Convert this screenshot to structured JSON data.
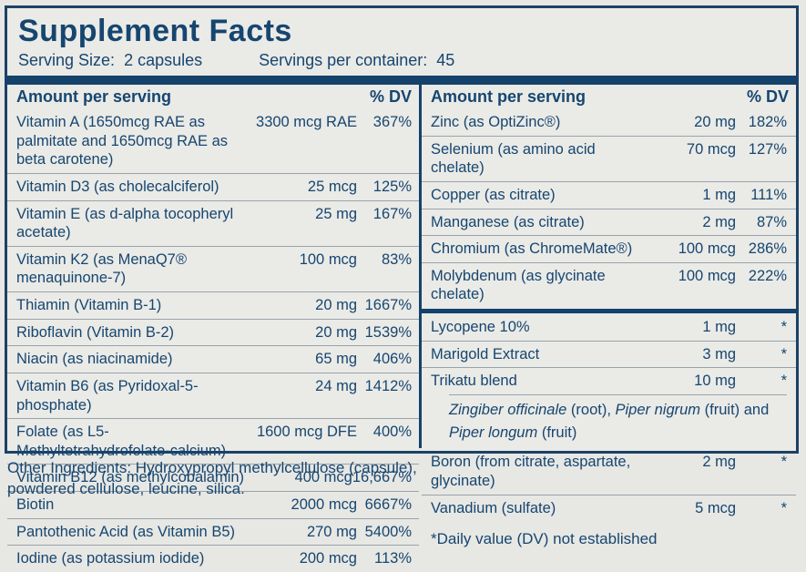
{
  "title": "Supplement Facts",
  "serving": {
    "size_label": "Serving Size:",
    "size_value": "2 capsules",
    "container_label": "Servings per container:",
    "container_value": "45"
  },
  "table_headers": {
    "amount": "Amount per serving",
    "dv": "% DV"
  },
  "left_rows": [
    {
      "name": "Vitamin A (1650mcg RAE as palmitate and 1650mcg RAE as beta carotene)",
      "amount": "3300 mcg RAE",
      "dv": "367%"
    },
    {
      "name": "Vitamin D3 (as cholecalciferol)",
      "amount": "25 mcg",
      "dv": "125%"
    },
    {
      "name": "Vitamin E (as d-alpha tocopheryl acetate)",
      "amount": "25 mg",
      "dv": "167%"
    },
    {
      "name": "Vitamin K2 (as MenaQ7® menaquinone-7)",
      "amount": "100 mcg",
      "dv": "83%"
    },
    {
      "name": "Thiamin (Vitamin B-1)",
      "amount": "20 mg",
      "dv": "1667%"
    },
    {
      "name": "Riboflavin (Vitamin B-2)",
      "amount": "20 mg",
      "dv": "1539%"
    },
    {
      "name": "Niacin (as niacinamide)",
      "amount": "65 mg",
      "dv": "406%"
    },
    {
      "name": "Vitamin B6 (as Pyridoxal-5-phosphate)",
      "amount": "24 mg",
      "dv": "1412%"
    },
    {
      "name": "Folate (as L5-Methyltetrahydrofolate-calcium)",
      "amount": "1600 mcg DFE",
      "dv": "400%"
    },
    {
      "name": "Vitamin B12 (as methylcobalamin)",
      "amount": "400 mcg",
      "dv": "16,667%"
    },
    {
      "name": "Biotin",
      "amount": "2000 mcg",
      "dv": "6667%"
    },
    {
      "name": "Pantothenic Acid (as Vitamin B5)",
      "amount": "270 mg",
      "dv": "5400%"
    },
    {
      "name": "Iodine (as potassium iodide)",
      "amount": "200 mcg",
      "dv": "113%"
    }
  ],
  "right_sections": [
    {
      "rows": [
        {
          "name": "Zinc (as OptiZinc®)",
          "amount": "20 mg",
          "dv": "182%"
        },
        {
          "name": "Selenium (as amino acid chelate)",
          "amount": "70 mcg",
          "dv": "127%"
        },
        {
          "name": "Copper (as citrate)",
          "amount": "1 mg",
          "dv": "111%"
        },
        {
          "name": "Manganese (as citrate)",
          "amount": "2 mg",
          "dv": "87%"
        },
        {
          "name": "Chromium (as ChromeMate®)",
          "amount": "100 mcg",
          "dv": "286%"
        },
        {
          "name": "Molybdenum (as glycinate chelate)",
          "amount": "100 mcg",
          "dv": "222%"
        }
      ]
    },
    {
      "rows": [
        {
          "name": "Lycopene 10%",
          "amount": "1 mg",
          "dv": "*"
        },
        {
          "name": "Marigold Extract",
          "amount": "3 mg",
          "dv": "*"
        },
        {
          "name": "Trikatu blend",
          "amount": "10 mg",
          "dv": "*",
          "sub_segments": [
            {
              "t": "Zingiber officinale",
              "i": true
            },
            {
              "t": " (root), ",
              "i": false
            },
            {
              "t": "Piper nigrum",
              "i": true
            },
            {
              "t": " (fruit) and ",
              "i": false
            },
            {
              "t": "Piper longum",
              "i": true
            },
            {
              "t": " (fruit)",
              "i": false
            }
          ]
        },
        {
          "name": "Boron (from citrate, aspartate, glycinate)",
          "amount": "2 mg",
          "dv": "*"
        },
        {
          "name": "Vanadium (sulfate)",
          "amount": "5 mcg",
          "dv": "*"
        }
      ]
    }
  ],
  "footnote": "*Daily value (DV) not established",
  "other_ingredients": "Other Ingredients: Hydroxypropyl methylcellulose (capsule), powdered cellulose, leucine, silica.",
  "colors": {
    "navy": "#16466f",
    "bar_navy": "#14426b",
    "background": "#e7e7e4",
    "divider_gray": "#9aa3ab"
  }
}
